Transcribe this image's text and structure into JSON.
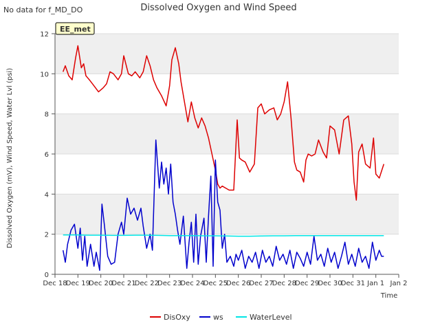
{
  "header": {
    "no_data_text": "No data for f_MD_DO",
    "site_badge": "EE_met"
  },
  "chart_data": {
    "type": "line",
    "title": "Dissolved Oxygen and Wind Speed",
    "xlabel": "Time",
    "ylabel": "Dissolved Oxygen (mV), Wind Speed, Water Lvl (psi)",
    "xlim": [
      18,
      33
    ],
    "ylim": [
      0,
      12
    ],
    "x_ticks": [
      18,
      19,
      20,
      21,
      22,
      23,
      24,
      25,
      26,
      27,
      28,
      29,
      30,
      31,
      32,
      33
    ],
    "x_tick_labels": [
      "Dec 18",
      "Dec 19",
      "Dec 20",
      "Dec 21",
      "Dec 22",
      "Dec 23",
      "Dec 24",
      "Dec 25",
      "Dec 26",
      "Dec 27",
      "Dec 28",
      "Dec 29",
      "Dec 30",
      "Dec 31",
      "Jan 1",
      "Jan 2"
    ],
    "y_ticks": [
      0,
      2,
      4,
      6,
      8,
      10,
      12
    ],
    "y_tick_labels": [
      "0",
      "2",
      "4",
      "6",
      "8",
      "10",
      "12"
    ],
    "grid": true,
    "legend_position": "bottom",
    "series": [
      {
        "name": "DisOxy",
        "color": "#dd0000",
        "x": [
          18.35,
          18.45,
          18.6,
          18.75,
          18.9,
          19.0,
          19.15,
          19.25,
          19.35,
          19.5,
          19.7,
          19.9,
          20.1,
          20.25,
          20.4,
          20.55,
          20.75,
          20.9,
          21.0,
          21.2,
          21.35,
          21.5,
          21.7,
          21.85,
          22.0,
          22.15,
          22.3,
          22.45,
          22.65,
          22.85,
          23.0,
          23.1,
          23.25,
          23.4,
          23.5,
          23.65,
          23.8,
          23.95,
          24.1,
          24.25,
          24.4,
          24.55,
          24.7,
          24.85,
          25.0,
          25.1,
          25.2,
          25.3,
          25.45,
          25.6,
          25.8,
          25.95,
          26.05,
          26.15,
          26.3,
          26.5,
          26.7,
          26.85,
          27.0,
          27.15,
          27.35,
          27.55,
          27.7,
          27.85,
          28.0,
          28.15,
          28.3,
          28.45,
          28.55,
          28.7,
          28.85,
          28.95,
          29.05,
          29.2,
          29.35,
          29.5,
          29.7,
          29.85,
          30.0,
          30.2,
          30.4,
          30.6,
          30.8,
          30.95,
          31.05,
          31.15,
          31.25,
          31.4,
          31.55,
          31.75,
          31.9,
          32.0,
          32.15,
          32.35
        ],
        "y": [
          10.1,
          10.4,
          9.9,
          9.7,
          10.8,
          11.4,
          10.3,
          10.5,
          9.9,
          9.7,
          9.4,
          9.1,
          9.3,
          9.5,
          10.1,
          10.0,
          9.7,
          10.0,
          10.9,
          10.0,
          9.9,
          10.1,
          9.8,
          10.1,
          10.9,
          10.4,
          9.7,
          9.3,
          8.9,
          8.4,
          9.4,
          10.7,
          11.3,
          10.5,
          9.6,
          8.6,
          7.6,
          8.6,
          7.8,
          7.3,
          7.8,
          7.4,
          6.8,
          6.0,
          5.2,
          4.5,
          4.3,
          4.4,
          4.3,
          4.2,
          4.2,
          7.7,
          5.8,
          5.7,
          5.6,
          5.1,
          5.5,
          8.3,
          8.5,
          8.0,
          8.2,
          8.3,
          7.7,
          8.0,
          8.6,
          9.6,
          7.8,
          5.6,
          5.2,
          5.1,
          4.6,
          5.7,
          6.0,
          5.9,
          6.0,
          6.7,
          6.1,
          5.8,
          7.4,
          7.2,
          6.0,
          7.7,
          7.9,
          6.5,
          4.6,
          3.7,
          6.1,
          6.5,
          5.5,
          5.3,
          6.8,
          5.0,
          4.8,
          5.5
        ]
      },
      {
        "name": "ws",
        "color": "#0000cc",
        "x": [
          18.35,
          18.45,
          18.55,
          18.7,
          18.85,
          19.0,
          19.1,
          19.2,
          19.3,
          19.4,
          19.55,
          19.7,
          19.8,
          19.95,
          20.05,
          20.15,
          20.3,
          20.45,
          20.6,
          20.75,
          20.9,
          21.0,
          21.15,
          21.3,
          21.45,
          21.6,
          21.75,
          21.85,
          22.0,
          22.15,
          22.25,
          22.4,
          22.55,
          22.65,
          22.75,
          22.85,
          22.95,
          23.05,
          23.15,
          23.25,
          23.35,
          23.45,
          23.6,
          23.75,
          23.85,
          23.95,
          24.05,
          24.15,
          24.25,
          24.35,
          24.5,
          24.6,
          24.7,
          24.8,
          24.9,
          25.0,
          25.1,
          25.2,
          25.3,
          25.4,
          25.5,
          25.65,
          25.8,
          25.9,
          26.0,
          26.15,
          26.3,
          26.45,
          26.6,
          26.75,
          26.9,
          27.05,
          27.2,
          27.35,
          27.5,
          27.65,
          27.8,
          27.95,
          28.1,
          28.25,
          28.4,
          28.55,
          28.7,
          28.85,
          29.0,
          29.15,
          29.3,
          29.45,
          29.6,
          29.75,
          29.9,
          30.05,
          30.2,
          30.35,
          30.5,
          30.65,
          30.8,
          30.95,
          31.1,
          31.25,
          31.4,
          31.55,
          31.7,
          31.85,
          32.0,
          32.15,
          32.25,
          32.35
        ],
        "y": [
          1.2,
          0.6,
          1.5,
          2.2,
          2.5,
          1.3,
          2.3,
          0.7,
          1.9,
          0.4,
          1.5,
          0.4,
          1.1,
          0.2,
          3.5,
          2.5,
          0.9,
          0.5,
          0.6,
          2.0,
          2.6,
          2.0,
          3.8,
          3.0,
          3.3,
          2.7,
          3.3,
          2.4,
          1.3,
          2.0,
          1.2,
          6.7,
          4.3,
          5.6,
          4.5,
          5.3,
          4.0,
          5.5,
          3.6,
          3.0,
          2.2,
          1.5,
          2.9,
          0.3,
          1.6,
          2.6,
          0.6,
          3.0,
          0.5,
          1.9,
          2.8,
          0.6,
          2.9,
          4.9,
          0.4,
          5.7,
          3.6,
          3.2,
          1.3,
          2.0,
          0.6,
          0.9,
          0.4,
          1.0,
          0.7,
          1.2,
          0.3,
          0.9,
          0.6,
          1.1,
          0.3,
          1.2,
          0.6,
          0.9,
          0.4,
          1.4,
          0.7,
          1.0,
          0.5,
          1.2,
          0.3,
          1.1,
          0.8,
          0.4,
          1.1,
          0.5,
          1.9,
          0.7,
          1.0,
          0.4,
          1.3,
          0.6,
          1.1,
          0.3,
          0.9,
          1.6,
          0.5,
          1.0,
          0.4,
          1.3,
          0.6,
          0.9,
          0.3,
          1.6,
          0.7,
          1.2,
          0.9,
          0.9
        ]
      },
      {
        "name": "WaterLevel",
        "color": "#00e5e5",
        "x": [
          18.35,
          19.0,
          19.5,
          20.0,
          20.5,
          21.0,
          21.5,
          22.0,
          22.5,
          23.0,
          23.5,
          24.0,
          24.5,
          25.0,
          25.5,
          26.0,
          26.5,
          27.0,
          27.5,
          28.0,
          28.5,
          29.0,
          29.5,
          30.0,
          30.5,
          31.0,
          31.5,
          32.0,
          32.35
        ],
        "y": [
          1.96,
          1.96,
          1.95,
          1.95,
          1.94,
          1.94,
          1.95,
          1.95,
          1.94,
          1.93,
          1.93,
          1.93,
          1.92,
          1.92,
          1.91,
          1.9,
          1.9,
          1.91,
          1.92,
          1.92,
          1.93,
          1.93,
          1.93,
          1.93,
          1.93,
          1.93,
          1.93,
          1.93,
          1.93
        ]
      }
    ]
  }
}
